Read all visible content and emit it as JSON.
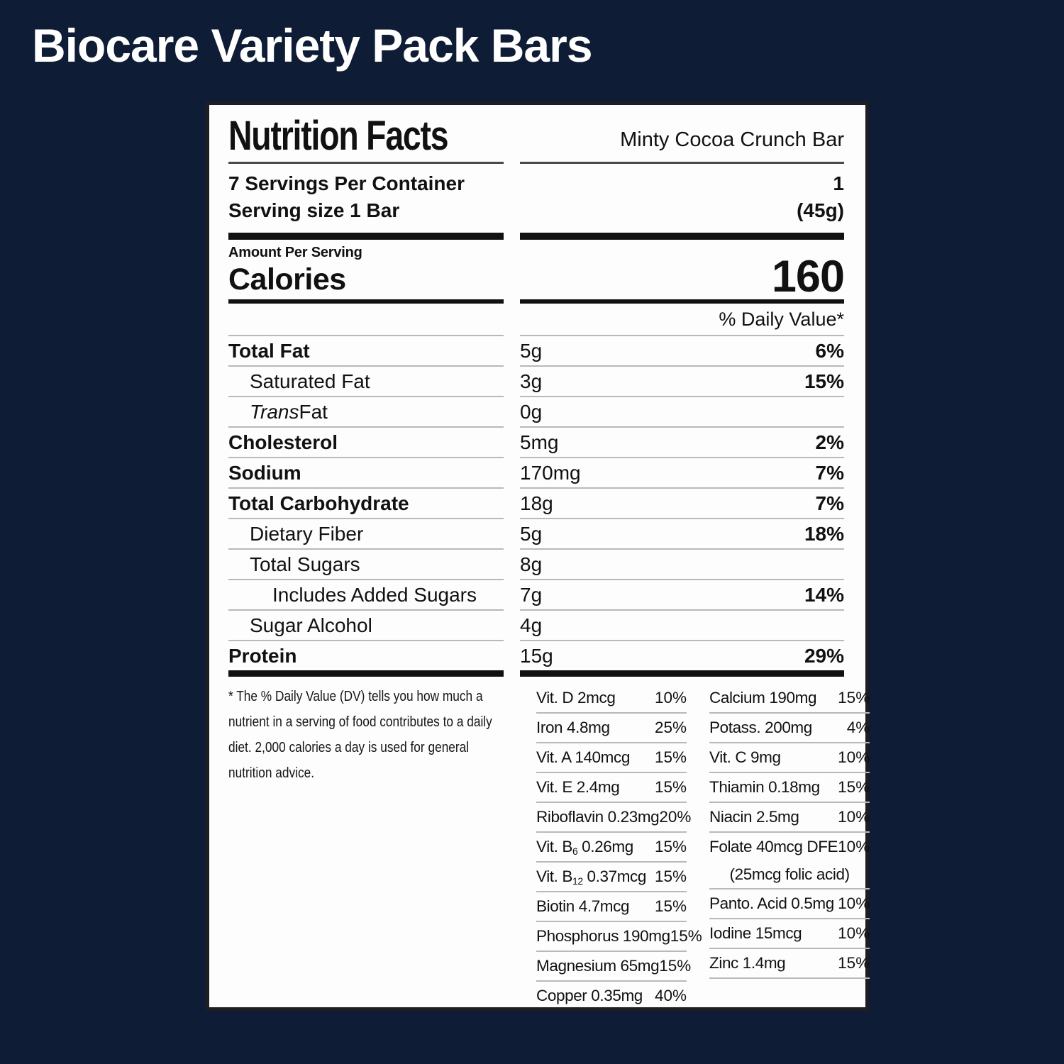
{
  "page": {
    "title": "Biocare Variety Pack Bars"
  },
  "colors": {
    "background": "#0E1C35",
    "card": "#FDFDFD",
    "card_border": "#1D1D22",
    "text": "#111111",
    "title_text": "#FFFFFF",
    "rule_gray": "#B9B9B9"
  },
  "label": {
    "title": "Nutrition Facts",
    "variant": "Minty Cocoa Crunch Bar",
    "servings_per_container": "7 Servings Per Container",
    "serving_size": "Serving size 1 Bar",
    "servings_value": "1",
    "serving_weight": "(45g)",
    "amount_per_serving": "Amount Per Serving",
    "calories": {
      "label": "Calories",
      "value": "160"
    },
    "daily_value_header": "% Daily Value*",
    "nutrients": [
      {
        "name": "Total Fat",
        "amount": "5g",
        "dv": "6%"
      },
      {
        "name": "Saturated Fat",
        "amount": "3g",
        "dv": "15%"
      },
      {
        "name_italic": "Trans",
        "name": " Fat",
        "amount": "0g",
        "dv": ""
      },
      {
        "name": "Cholesterol",
        "amount": "5mg",
        "dv": "2%"
      },
      {
        "name": "Sodium",
        "amount": "170mg",
        "dv": "7%"
      },
      {
        "name": "Total Carbohydrate",
        "amount": "18g",
        "dv": "7%"
      },
      {
        "name": "Dietary Fiber",
        "amount": "5g",
        "dv": "18%"
      },
      {
        "name": "Total Sugars",
        "amount": "8g",
        "dv": ""
      },
      {
        "name": "Includes Added Sugars",
        "amount": "7g",
        "dv": "14%"
      },
      {
        "name": "Sugar Alcohol",
        "amount": "4g",
        "dv": ""
      },
      {
        "name": "Protein",
        "amount": "15g",
        "dv": "29%"
      }
    ],
    "footnote": "* The % Daily Value (DV) tells you how much a nutrient in a serving of food contributes to a daily diet. 2,000 calories a day is used for general nutrition advice.",
    "micronutrients_left": [
      {
        "name": "Vit. D 2mcg",
        "dv": "10%"
      },
      {
        "name": "Iron 4.8mg",
        "dv": "25%"
      },
      {
        "name": "Vit. A 140mcg",
        "dv": "15%"
      },
      {
        "name": "Vit. E 2.4mg",
        "dv": "15%"
      },
      {
        "name": "Riboflavin 0.23mg",
        "dv": "20%"
      },
      {
        "name_pre": "Vit. B",
        "name_sub": "6",
        "name_post": " 0.26mg",
        "dv": "15%"
      },
      {
        "name_pre": "Vit. B",
        "name_sub": "12",
        "name_post": " 0.37mcg",
        "dv": "15%"
      },
      {
        "name": "Biotin 4.7mcg",
        "dv": "15%"
      },
      {
        "name": "Phosphorus 190mg",
        "dv": "15%"
      },
      {
        "name": "Magnesium 65mg",
        "dv": "15%"
      },
      {
        "name": "Copper 0.35mg",
        "dv": "40%"
      }
    ],
    "micronutrients_right": [
      {
        "name": "Calcium 190mg",
        "dv": "15%"
      },
      {
        "name": "Potass. 200mg",
        "dv": "4%"
      },
      {
        "name": "Vit. C 9mg",
        "dv": "10%"
      },
      {
        "name": "Thiamin 0.18mg",
        "dv": "15%"
      },
      {
        "name": "Niacin 2.5mg",
        "dv": "10%",
        "note": ""
      },
      {
        "name": "Folate 40mcg DFE",
        "dv": "10%",
        "note": "(25mcg folic acid)"
      },
      {
        "name": "Panto. Acid 0.5mg",
        "dv": "10%"
      },
      {
        "name": "Iodine 15mcg",
        "dv": "10%"
      },
      {
        "name": "Zinc 1.4mg",
        "dv": "15%"
      }
    ]
  }
}
